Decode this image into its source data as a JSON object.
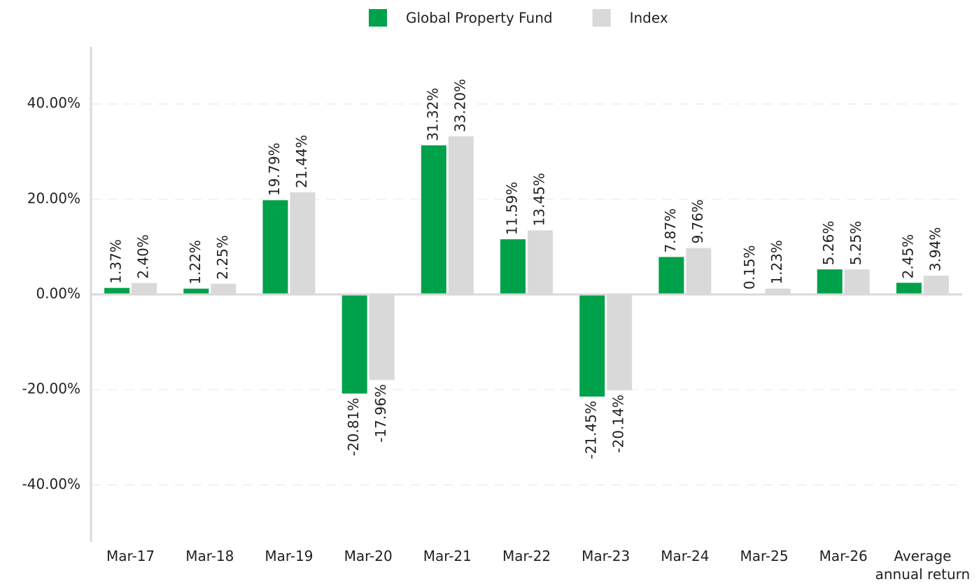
{
  "chart_data": {
    "type": "bar",
    "categories": [
      "Mar-17",
      "Mar-18",
      "Mar-19",
      "Mar-20",
      "Mar-21",
      "Mar-22",
      "Mar-23",
      "Mar-24",
      "Mar-25",
      "Mar-26",
      "Average annual return"
    ],
    "series": [
      {
        "name": "Global Property Fund",
        "color": "#00a14b",
        "values": [
          1.37,
          1.22,
          19.79,
          -20.81,
          31.32,
          11.59,
          -21.45,
          7.87,
          0.15,
          5.26,
          2.45
        ],
        "value_labels": [
          "1.37%",
          "1.22%",
          "19.79%",
          "-20.81%",
          "31.32%",
          "11.59%",
          "-21.45%",
          "7.87%",
          "0.15%",
          "5.26%",
          "2.45%"
        ]
      },
      {
        "name": "Index",
        "color": "#d9d9d9",
        "values": [
          2.4,
          2.25,
          21.44,
          -17.96,
          33.2,
          13.45,
          -20.14,
          9.76,
          1.23,
          5.25,
          3.94
        ],
        "value_labels": [
          "2.40%",
          "2.25%",
          "21.44%",
          "-17.96%",
          "33.20%",
          "13.45%",
          "-20.14%",
          "9.76%",
          "1.23%",
          "5.25%",
          "3.94%"
        ]
      }
    ],
    "ylim": [
      -52,
      52
    ],
    "yticks": [
      {
        "value": -40,
        "label": "-40.00%"
      },
      {
        "value": -20,
        "label": "-20.00%"
      },
      {
        "value": 0,
        "label": "0.00%"
      },
      {
        "value": 20,
        "label": "20.00%"
      },
      {
        "value": 40,
        "label": "40.00%"
      }
    ],
    "grid": true,
    "legend": "top"
  }
}
